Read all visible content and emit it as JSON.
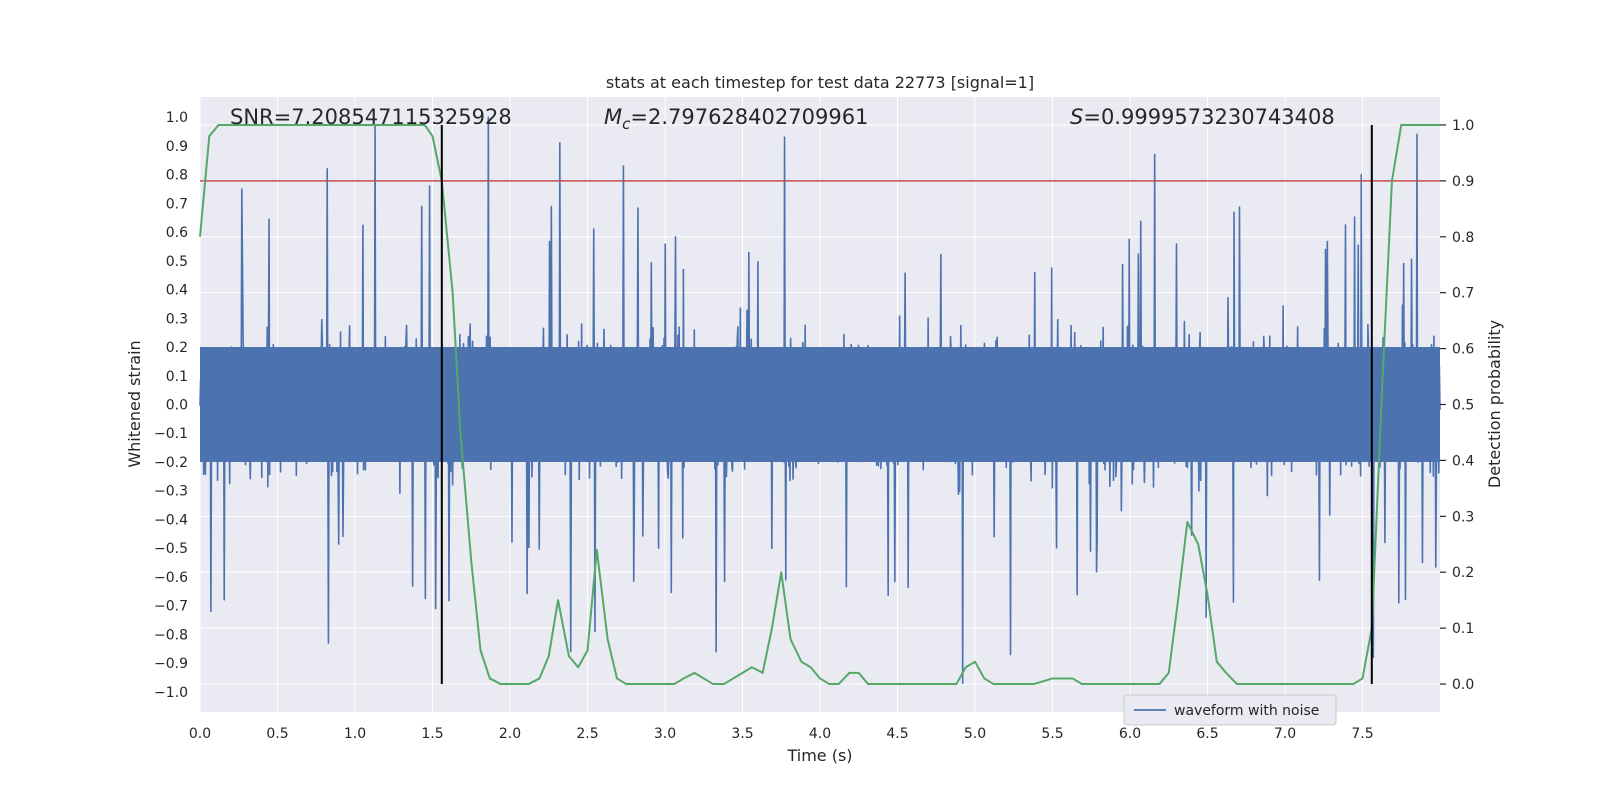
{
  "chart_data": {
    "type": "line",
    "title": "stats at each timestep for test data 22773 [signal=1]",
    "xlabel": "Time (s)",
    "ylabel_left": "Whitened strain",
    "ylabel_right": "Detection probability",
    "xlim": [
      0.0,
      8.0
    ],
    "ylim_left": [
      -1.07,
      1.07
    ],
    "ylim_right": [
      -0.05,
      1.05
    ],
    "x_ticks": [
      0.0,
      0.5,
      1.0,
      1.5,
      2.0,
      2.5,
      3.0,
      3.5,
      4.0,
      4.5,
      5.0,
      5.5,
      6.0,
      6.5,
      7.0,
      7.5
    ],
    "x_tick_labels": [
      "0.0",
      "0.5",
      "1.0",
      "1.5",
      "2.0",
      "2.5",
      "3.0",
      "3.5",
      "4.0",
      "4.5",
      "5.0",
      "5.5",
      "6.0",
      "6.5",
      "7.0",
      "7.5"
    ],
    "y_left_ticks": [
      1.0,
      0.9,
      0.8,
      0.7,
      0.6,
      0.5,
      0.4,
      0.3,
      0.2,
      0.1,
      0.0,
      -0.1,
      -0.2,
      -0.3,
      -0.4,
      -0.5,
      -0.6,
      -0.7,
      -0.8,
      -0.9,
      -1.0
    ],
    "y_left_tick_labels": [
      "1.0",
      "0.9",
      "0.8",
      "0.7",
      "0.6",
      "0.5",
      "0.4",
      "0.3",
      "0.2",
      "0.1",
      "0.0",
      "−0.1",
      "−0.2",
      "−0.3",
      "−0.4",
      "−0.5",
      "−0.6",
      "−0.7",
      "−0.8",
      "−0.9",
      "−1.0"
    ],
    "y_right_ticks": [
      1.0,
      0.9,
      0.8,
      0.7,
      0.6,
      0.5,
      0.4,
      0.3,
      0.2,
      0.1,
      0.0
    ],
    "y_right_tick_labels": [
      "1.0",
      "0.9",
      "0.8",
      "0.7",
      "0.6",
      "0.5",
      "0.4",
      "0.3",
      "0.2",
      "0.1",
      "0.0"
    ],
    "annotations": {
      "snr": "SNR=7.208547115325928",
      "mc_symbol": "M",
      "mc_sub": "c",
      "mc_value": "=2.797628402709961",
      "s_symbol": "S",
      "s_value": "=0.9999573230743408"
    },
    "threshold_right": 0.9,
    "vertical_markers_x": [
      1.56,
      7.56
    ],
    "legend": {
      "label": "waveform with noise",
      "location": "lower-right"
    },
    "waveform": {
      "name": "waveform with noise",
      "color": "#4c72b0",
      "sample_count": 2048,
      "core_band": [
        -0.2,
        0.2
      ],
      "typical_envelope": [
        -0.45,
        0.45
      ],
      "peaks": [
        {
          "x": 0.27,
          "y": 0.75
        },
        {
          "x": 0.82,
          "y": 0.82
        },
        {
          "x": 1.13,
          "y": 0.97
        },
        {
          "x": 1.48,
          "y": 0.76
        },
        {
          "x": 1.86,
          "y": 1.0
        },
        {
          "x": 2.32,
          "y": 0.91
        },
        {
          "x": 2.73,
          "y": 0.83
        },
        {
          "x": 3.77,
          "y": 0.93
        },
        {
          "x": 6.16,
          "y": 0.87
        },
        {
          "x": 7.49,
          "y": 0.8
        },
        {
          "x": 7.85,
          "y": 0.94
        }
      ],
      "troughs": [
        {
          "x": 0.07,
          "y": -0.72
        },
        {
          "x": 0.83,
          "y": -0.83
        },
        {
          "x": 1.52,
          "y": -0.71
        },
        {
          "x": 2.39,
          "y": -0.86
        },
        {
          "x": 2.55,
          "y": -0.79
        },
        {
          "x": 3.33,
          "y": -0.86
        },
        {
          "x": 4.92,
          "y": -0.97
        },
        {
          "x": 5.23,
          "y": -0.87
        },
        {
          "x": 6.49,
          "y": -0.74
        },
        {
          "x": 7.57,
          "y": -0.88
        }
      ]
    },
    "detection_probability": {
      "name": "detection probability",
      "color": "#55a868",
      "x": [
        0.0,
        0.06,
        0.12,
        0.5,
        1.0,
        1.45,
        1.5,
        1.56,
        1.63,
        1.68,
        1.75,
        1.81,
        1.87,
        1.94,
        2.0,
        2.12,
        2.19,
        2.25,
        2.31,
        2.38,
        2.44,
        2.5,
        2.56,
        2.63,
        2.69,
        2.75,
        2.81,
        2.94,
        3.06,
        3.12,
        3.19,
        3.25,
        3.31,
        3.38,
        3.5,
        3.56,
        3.63,
        3.69,
        3.75,
        3.81,
        3.88,
        3.94,
        4.0,
        4.06,
        4.12,
        4.19,
        4.25,
        4.31,
        4.5,
        4.69,
        4.88,
        4.94,
        5.0,
        5.06,
        5.12,
        5.38,
        5.5,
        5.56,
        5.63,
        5.69,
        5.81,
        5.94,
        6.06,
        6.19,
        6.25,
        6.31,
        6.37,
        6.44,
        6.5,
        6.56,
        6.62,
        6.69,
        6.81,
        7.0,
        7.25,
        7.38,
        7.44,
        7.5,
        7.56,
        7.63,
        7.69,
        7.75,
        7.81,
        8.0
      ],
      "y": [
        0.8,
        0.98,
        1.0,
        1.0,
        1.0,
        1.0,
        0.98,
        0.9,
        0.7,
        0.45,
        0.22,
        0.06,
        0.01,
        0.0,
        0.0,
        0.0,
        0.01,
        0.05,
        0.15,
        0.05,
        0.03,
        0.06,
        0.24,
        0.08,
        0.01,
        0.0,
        0.0,
        0.0,
        0.0,
        0.01,
        0.02,
        0.01,
        0.0,
        0.0,
        0.02,
        0.03,
        0.02,
        0.1,
        0.2,
        0.08,
        0.04,
        0.03,
        0.01,
        0.0,
        0.0,
        0.02,
        0.02,
        0.0,
        0.0,
        0.0,
        0.0,
        0.03,
        0.04,
        0.01,
        0.0,
        0.0,
        0.01,
        0.01,
        0.01,
        0.0,
        0.0,
        0.0,
        0.0,
        0.0,
        0.02,
        0.15,
        0.29,
        0.25,
        0.16,
        0.04,
        0.02,
        0.0,
        0.0,
        0.0,
        0.0,
        0.0,
        0.0,
        0.01,
        0.1,
        0.55,
        0.9,
        1.0,
        1.0,
        1.0
      ]
    },
    "colors": {
      "axes_background": "#eaeaf2",
      "grid": "#ffffff",
      "threshold": "#c44e52",
      "markers": "#000000"
    }
  }
}
